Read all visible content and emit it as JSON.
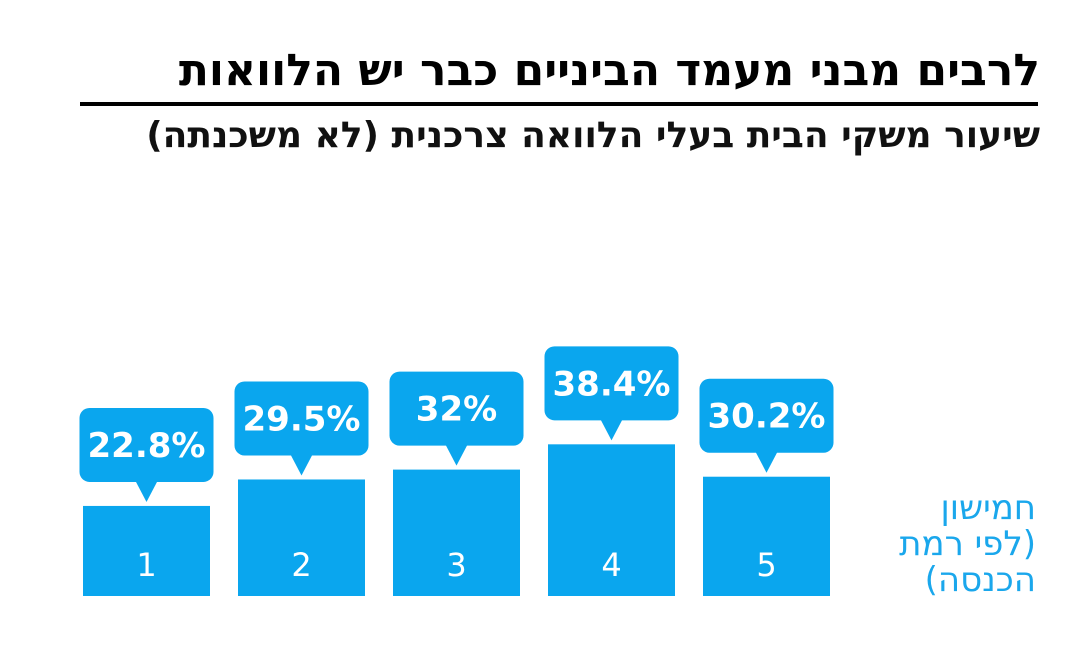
{
  "header": {
    "title": "לרבים מבני מעמד הביניים כבר יש הלוואות",
    "subtitle": "שיעור משקי הבית בעלי הלוואה צרכנית (לא משכנתה)"
  },
  "axis_title": {
    "line1": "חמישון",
    "line2": "(לפי רמת",
    "line3": "הכנסה)"
  },
  "colors": {
    "bar": "#0aa6ee",
    "accent_text": "#1aa7ec"
  },
  "chart_data": {
    "type": "bar",
    "title": "לרבים מבני מעמד הביניים כבר יש הלוואות",
    "subtitle": "שיעור משקי הבית בעלי הלוואה צרכנית (לא משכנתה)",
    "xlabel": "חמישון (לפי רמת הכנסה)",
    "ylabel": "",
    "categories": [
      "1",
      "2",
      "3",
      "4",
      "5"
    ],
    "values": [
      22.8,
      29.5,
      32,
      38.4,
      30.2
    ],
    "value_labels": [
      "22.8%",
      "29.5%",
      "32%",
      "38.4%",
      "30.2%"
    ],
    "unit": "%",
    "grid": false,
    "legend": "none"
  }
}
